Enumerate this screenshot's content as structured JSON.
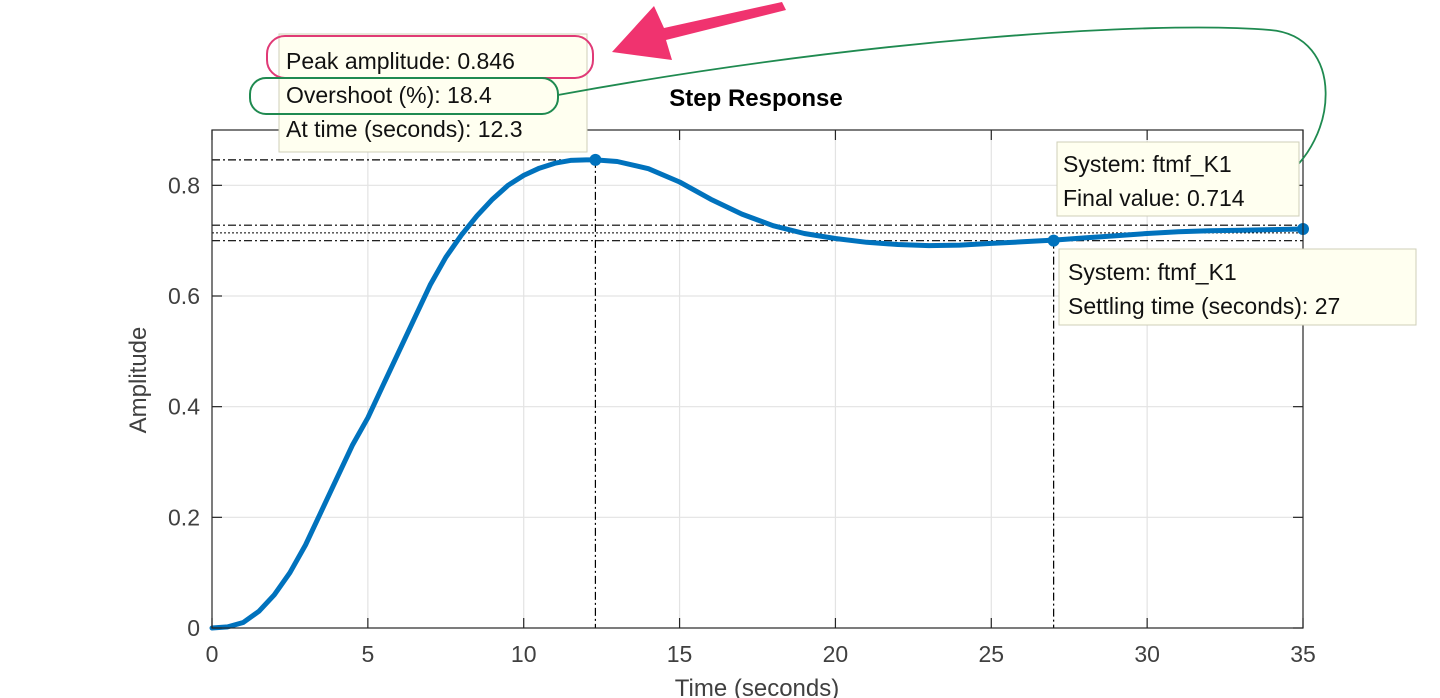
{
  "chart_data": {
    "type": "line",
    "title": "Step Response",
    "xlabel": "Time (seconds)",
    "ylabel": "Amplitude",
    "xlim": [
      0,
      35
    ],
    "ylim": [
      0,
      0.9
    ],
    "xticks": [
      0,
      5,
      10,
      15,
      20,
      25,
      30,
      35
    ],
    "yticks": [
      0,
      0.2,
      0.4,
      0.6,
      0.8
    ],
    "ytick_labels": [
      "0",
      "0.2",
      "0.4",
      "0.6",
      "0.8"
    ],
    "grid": true,
    "series": [
      {
        "name": "ftmf_K1",
        "color": "#0072bd",
        "x": [
          0,
          0.5,
          1,
          1.5,
          2,
          2.5,
          3,
          3.5,
          4,
          4.5,
          5,
          5.5,
          6,
          6.5,
          7,
          7.5,
          8,
          8.5,
          9,
          9.5,
          10,
          10.5,
          11,
          11.5,
          12,
          12.3,
          13,
          14,
          15,
          16,
          17,
          18,
          19,
          20,
          21,
          22,
          23,
          24,
          25,
          26,
          27,
          28,
          29,
          30,
          31,
          32,
          33,
          34,
          35
        ],
        "y": [
          0,
          0.002,
          0.01,
          0.03,
          0.06,
          0.1,
          0.15,
          0.21,
          0.27,
          0.33,
          0.38,
          0.44,
          0.5,
          0.56,
          0.62,
          0.67,
          0.71,
          0.745,
          0.775,
          0.8,
          0.818,
          0.831,
          0.84,
          0.845,
          0.846,
          0.846,
          0.843,
          0.83,
          0.806,
          0.775,
          0.748,
          0.727,
          0.713,
          0.704,
          0.697,
          0.693,
          0.691,
          0.692,
          0.695,
          0.698,
          0.701,
          0.705,
          0.709,
          0.713,
          0.716,
          0.718,
          0.719,
          0.72,
          0.721
        ]
      }
    ],
    "reference_lines": {
      "final_value": 0.714,
      "settling_band": [
        0.7,
        0.728
      ]
    },
    "markers": [
      {
        "x": 12.3,
        "y": 0.846
      },
      {
        "x": 27,
        "y": 0.7
      },
      {
        "x": 35,
        "y": 0.721
      }
    ],
    "annotations": {
      "peak": {
        "lines": [
          "Peak amplitude: 0.846",
          "Overshoot (%): 18.4",
          "At time (seconds): 12.3"
        ]
      },
      "final": {
        "lines": [
          "System: ftmf_K1",
          "Final value: 0.714"
        ]
      },
      "settling": {
        "lines": [
          "System: ftmf_K1",
          "Settling time (seconds): 27"
        ]
      }
    },
    "highlight_colors": {
      "peak_outline": "#e03a76",
      "overshoot_outline": "#1f8a50",
      "arrow_pink": "#f0336f",
      "arrow_green": "#1f8a50"
    }
  }
}
